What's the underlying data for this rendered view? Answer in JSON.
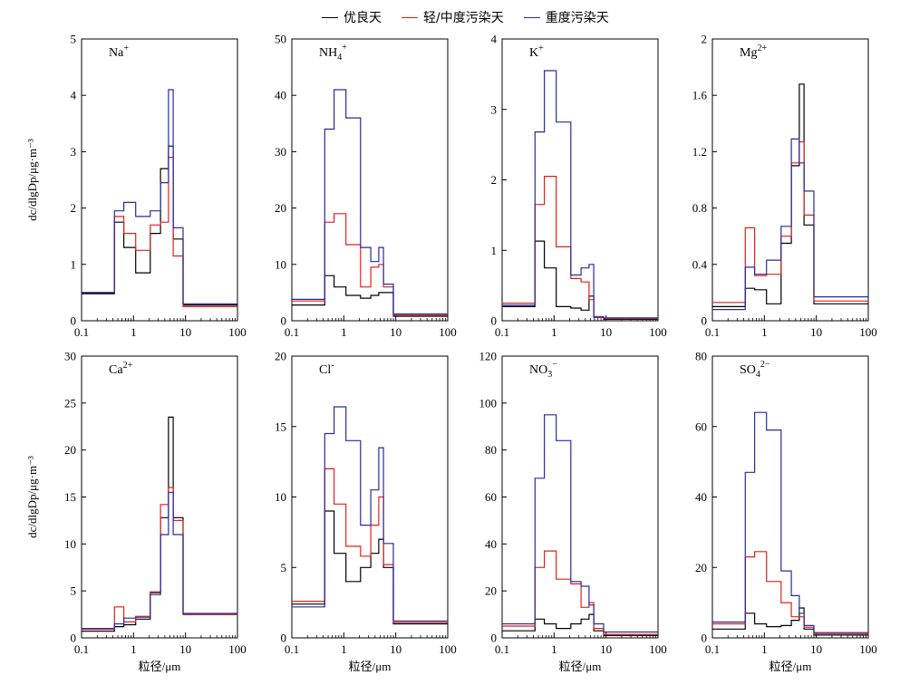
{
  "legend": [
    {
      "label": "优良天",
      "color": "#000000"
    },
    {
      "label": "轻/中度污染天",
      "color": "#e0201b"
    },
    {
      "label": "重度污染天",
      "color": "#2a2a9e"
    }
  ],
  "x_edges": [
    0.1,
    0.43,
    0.65,
    1.1,
    2.1,
    3.3,
    4.7,
    5.8,
    9.0,
    100
  ],
  "chart_data": [
    {
      "type": "step",
      "ion": "Na",
      "sup": "+",
      "sub": "",
      "ylabel": "dc/dlgDp/μg·m⁻³",
      "xlabel": "",
      "ylim": [
        0,
        5
      ],
      "yticks": [
        0,
        1,
        2,
        3,
        4,
        5
      ],
      "xscale": "log",
      "xlim": [
        0.1,
        100
      ],
      "series": [
        {
          "color": "#000000",
          "values": [
            0.48,
            1.75,
            1.3,
            0.85,
            1.55,
            2.7,
            3.1,
            1.45,
            0.28
          ]
        },
        {
          "color": "#e0201b",
          "values": [
            0.5,
            1.85,
            1.55,
            1.25,
            1.7,
            1.75,
            2.9,
            1.15,
            0.25
          ]
        },
        {
          "color": "#2a2a9e",
          "values": [
            0.5,
            1.95,
            2.1,
            1.85,
            1.95,
            2.45,
            4.1,
            1.65,
            0.3
          ]
        }
      ]
    },
    {
      "type": "step",
      "ion": "NH",
      "sup": "+",
      "sub": "4",
      "ylabel": "",
      "xlabel": "",
      "ylim": [
        0,
        50
      ],
      "yticks": [
        0,
        10,
        20,
        30,
        40,
        50
      ],
      "xscale": "log",
      "xlim": [
        0.1,
        100
      ],
      "series": [
        {
          "color": "#000000",
          "values": [
            2.8,
            8,
            6,
            4.5,
            4,
            4.5,
            5,
            5,
            0.8
          ]
        },
        {
          "color": "#e0201b",
          "values": [
            3.5,
            17.5,
            19,
            13.5,
            6,
            9.5,
            10,
            6,
            1
          ]
        },
        {
          "color": "#2a2a9e",
          "values": [
            3.8,
            34,
            41,
            36,
            13,
            10.5,
            13,
            6.5,
            1.2
          ]
        }
      ]
    },
    {
      "type": "step",
      "ion": "K",
      "sup": "+",
      "sub": "",
      "ylabel": "",
      "xlabel": "",
      "ylim": [
        0,
        4
      ],
      "yticks": [
        0,
        1,
        2,
        3,
        4
      ],
      "xscale": "log",
      "xlim": [
        0.1,
        100
      ],
      "series": [
        {
          "color": "#000000",
          "values": [
            0.2,
            1.13,
            0.75,
            0.2,
            0.18,
            0.15,
            0.35,
            0.05,
            0.02
          ]
        },
        {
          "color": "#e0201b",
          "values": [
            0.25,
            1.65,
            2.05,
            1.05,
            0.6,
            0.55,
            0.3,
            0.06,
            0.03
          ]
        },
        {
          "color": "#2a2a9e",
          "values": [
            0.22,
            2.68,
            3.55,
            2.82,
            0.65,
            0.75,
            0.8,
            0.05,
            0.04
          ]
        }
      ]
    },
    {
      "type": "step",
      "ion": "Mg",
      "sup": "2+",
      "sub": "",
      "ylabel": "",
      "xlabel": "",
      "ylim": [
        0,
        2.0
      ],
      "yticks": [
        0,
        0.4,
        0.8,
        1.2,
        1.6,
        2.0
      ],
      "xscale": "log",
      "xlim": [
        0.1,
        100
      ],
      "series": [
        {
          "color": "#000000",
          "values": [
            0.1,
            0.23,
            0.22,
            0.12,
            0.55,
            1.1,
            1.68,
            0.68,
            0.12
          ]
        },
        {
          "color": "#e0201b",
          "values": [
            0.13,
            0.66,
            0.32,
            0.33,
            0.6,
            1.12,
            1.27,
            0.75,
            0.14
          ]
        },
        {
          "color": "#2a2a9e",
          "values": [
            0.08,
            0.38,
            0.33,
            0.43,
            0.67,
            1.29,
            1.12,
            0.92,
            0.17
          ]
        }
      ]
    },
    {
      "type": "step",
      "ion": "Ca",
      "sup": "2+",
      "sub": "",
      "ylabel": "dc/dlgDp/μg·m⁻³",
      "xlabel": "粒径/μm",
      "ylim": [
        0,
        30
      ],
      "yticks": [
        0,
        5,
        10,
        15,
        20,
        25,
        30
      ],
      "xscale": "log",
      "xlim": [
        0.1,
        100
      ],
      "series": [
        {
          "color": "#000000",
          "values": [
            0.7,
            1.2,
            1.4,
            2,
            4.8,
            12.8,
            23.5,
            12.8,
            2.5
          ]
        },
        {
          "color": "#e0201b",
          "values": [
            0.9,
            3.3,
            1.7,
            2.3,
            4.9,
            14.2,
            16,
            12.5,
            2.5
          ]
        },
        {
          "color": "#2a2a9e",
          "values": [
            1.0,
            1.5,
            2.1,
            2.2,
            4.6,
            11,
            15.5,
            11,
            2.6
          ]
        }
      ]
    },
    {
      "type": "step",
      "ion": "Cl",
      "sup": "-",
      "sub": "",
      "ylabel": "",
      "xlabel": "粒径/μm",
      "ylim": [
        0,
        20
      ],
      "yticks": [
        0,
        5,
        10,
        15,
        20
      ],
      "xscale": "log",
      "xlim": [
        0.1,
        100
      ],
      "series": [
        {
          "color": "#000000",
          "values": [
            2.4,
            9,
            6,
            4,
            5,
            6,
            7,
            5,
            1
          ]
        },
        {
          "color": "#e0201b",
          "values": [
            2.6,
            12,
            9.5,
            6.5,
            5.8,
            8,
            10,
            5.2,
            1.1
          ]
        },
        {
          "color": "#2a2a9e",
          "values": [
            2.2,
            14.5,
            16.4,
            14,
            8,
            10.5,
            13.5,
            6.7,
            1.2
          ]
        }
      ]
    },
    {
      "type": "step",
      "ion": "NO",
      "sup": "−",
      "sub": "3",
      "ylabel": "",
      "xlabel": "粒径/μm",
      "ylim": [
        0,
        120
      ],
      "yticks": [
        0,
        20,
        40,
        60,
        80,
        100,
        120
      ],
      "xscale": "log",
      "xlim": [
        0.1,
        100
      ],
      "series": [
        {
          "color": "#000000",
          "values": [
            3,
            8,
            6,
            4,
            6,
            8,
            10,
            3,
            1
          ]
        },
        {
          "color": "#e0201b",
          "values": [
            5,
            30,
            37,
            25,
            23,
            13,
            15,
            4,
            1.5
          ]
        },
        {
          "color": "#2a2a9e",
          "values": [
            6,
            68,
            95,
            84,
            24,
            22,
            14,
            6,
            2.5
          ]
        }
      ]
    },
    {
      "type": "step",
      "ion": "SO",
      "sup": "2−",
      "sub": "4",
      "ylabel": "",
      "xlabel": "粒径/μm",
      "ylim": [
        0,
        80
      ],
      "yticks": [
        0,
        20,
        40,
        60,
        80
      ],
      "xscale": "log",
      "xlim": [
        0.1,
        100
      ],
      "series": [
        {
          "color": "#000000",
          "values": [
            2.5,
            7,
            4,
            3.2,
            3.5,
            5,
            8.5,
            2.5,
            0.8
          ]
        },
        {
          "color": "#e0201b",
          "values": [
            4,
            23,
            24.5,
            16,
            10,
            6,
            6,
            3,
            1.2
          ]
        },
        {
          "color": "#2a2a9e",
          "values": [
            4.5,
            47,
            64,
            59,
            19,
            12,
            7,
            3.5,
            1.5
          ]
        }
      ]
    }
  ]
}
